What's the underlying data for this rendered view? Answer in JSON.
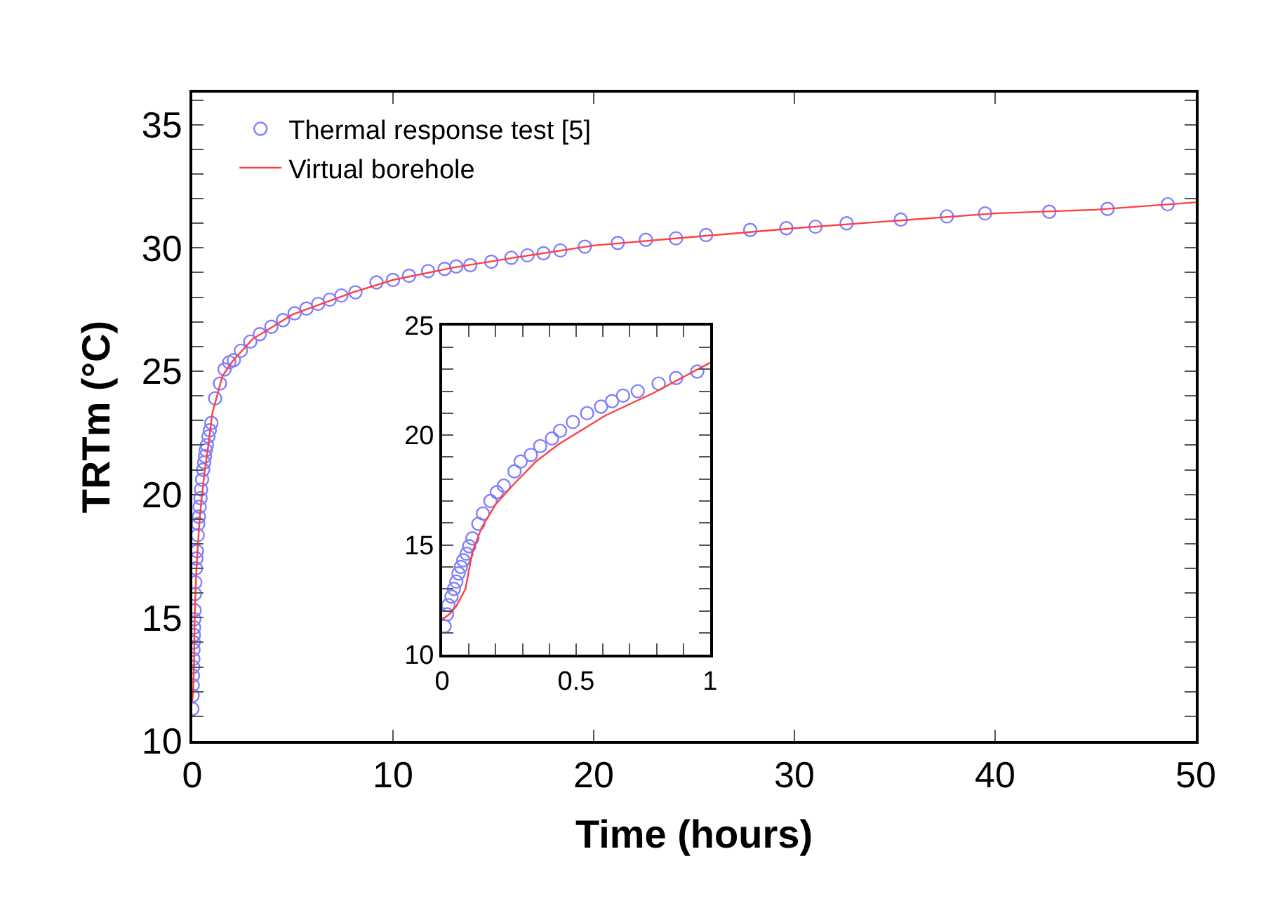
{
  "chart_data": [
    {
      "type": "scatter",
      "xlabel": "Time (hours)",
      "ylabel": "TRTm (°C)",
      "xlim": [
        0,
        50
      ],
      "ylim": [
        10,
        36.3
      ],
      "xticks": [
        0,
        10,
        20,
        30,
        40,
        50
      ],
      "yticks": [
        10,
        {
          "value": 11,
          "label": null
        },
        {
          "value": 12,
          "label": null
        },
        {
          "value": 13,
          "label": null
        },
        {
          "value": 14,
          "label": null
        },
        15,
        {
          "value": 16,
          "label": null
        },
        {
          "value": 17,
          "label": null
        },
        {
          "value": 18,
          "label": null
        },
        {
          "value": 19,
          "label": null
        },
        20,
        {
          "value": 21,
          "label": null
        },
        {
          "value": 22,
          "label": null
        },
        {
          "value": 23,
          "label": null
        },
        {
          "value": 24,
          "label": null
        },
        25,
        {
          "value": 26,
          "label": null
        },
        {
          "value": 27,
          "label": null
        },
        {
          "value": 28,
          "label": null
        },
        {
          "value": 29,
          "label": null
        },
        30,
        {
          "value": 31,
          "label": null
        },
        {
          "value": 32,
          "label": null
        },
        {
          "value": 33,
          "label": null
        },
        {
          "value": 34,
          "label": null
        },
        35,
        {
          "value": 36,
          "label": null
        }
      ],
      "legend": "top left",
      "series": [
        {
          "name": "Thermal response test [5]",
          "marker": "circle",
          "color": "#8080ff",
          "x": [
            0.009,
            0.018,
            0.023,
            0.035,
            0.044,
            0.053,
            0.061,
            0.07,
            0.079,
            0.091,
            0.101,
            0.113,
            0.135,
            0.152,
            0.18,
            0.204,
            0.23,
            0.27,
            0.293,
            0.331,
            0.366,
            0.41,
            0.44,
            0.488,
            0.541,
            0.593,
            0.634,
            0.675,
            0.73,
            0.808,
            0.873,
            0.952,
            1.14,
            1.38,
            1.61,
            1.84,
            2.07,
            2.42,
            2.89,
            3.36,
            3.94,
            4.52,
            5.1,
            5.69,
            6.27,
            6.85,
            7.43,
            8.13,
            9.18,
            10.0,
            10.8,
            11.75,
            12.57,
            13.15,
            13.85,
            14.9,
            15.9,
            16.7,
            17.5,
            18.34,
            19.56,
            21.2,
            22.6,
            24.1,
            25.6,
            27.8,
            29.6,
            31.05,
            32.6,
            35.3,
            37.6,
            39.5,
            42.7,
            45.6,
            48.6
          ],
          "values": [
            11.3,
            11.84,
            12.26,
            12.65,
            13.0,
            13.33,
            13.7,
            14.0,
            14.3,
            14.6,
            14.94,
            15.3,
            15.96,
            16.43,
            17.0,
            17.4,
            17.7,
            18.35,
            18.8,
            19.1,
            19.5,
            19.85,
            20.2,
            20.6,
            21.0,
            21.3,
            21.55,
            21.8,
            22.0,
            22.35,
            22.6,
            22.9,
            23.9,
            24.5,
            25.07,
            25.36,
            25.45,
            25.83,
            26.2,
            26.5,
            26.8,
            27.07,
            27.35,
            27.54,
            27.73,
            27.9,
            28.07,
            28.2,
            28.6,
            28.7,
            28.87,
            29.06,
            29.15,
            29.25,
            29.3,
            29.44,
            29.6,
            29.7,
            29.78,
            29.9,
            30.05,
            30.2,
            30.33,
            30.39,
            30.52,
            30.73,
            30.8,
            30.86,
            31.0,
            31.15,
            31.28,
            31.4,
            31.47,
            31.58,
            31.77
          ]
        },
        {
          "name": "Virtual borehole",
          "type": "line",
          "marker": "none",
          "line_style": "solid",
          "color": "#ff4040",
          "x": [
            0,
            0.026,
            0.052,
            0.087,
            0.113,
            0.148,
            0.2,
            0.27,
            0.35,
            0.436,
            0.61,
            0.785,
            1.0,
            1.5,
            2,
            3,
            5,
            8,
            10,
            13,
            16,
            20,
            25,
            30,
            35,
            40,
            45,
            50
          ],
          "values": [
            11.6,
            11.84,
            12.2,
            13.0,
            14.7,
            15.8,
            16.86,
            17.8,
            18.8,
            19.6,
            20.9,
            21.9,
            23.3,
            24.8,
            25.4,
            26.3,
            27.3,
            28.2,
            28.7,
            29.2,
            29.6,
            30.1,
            30.45,
            30.8,
            31.1,
            31.4,
            31.55,
            31.85
          ]
        }
      ]
    },
    {
      "type": "scatter",
      "xlim": [
        0,
        1
      ],
      "ylim": [
        10,
        25
      ],
      "xticks": [
        0,
        {
          "value": 0.1,
          "label": null
        },
        {
          "value": 0.2,
          "label": null
        },
        {
          "value": 0.3,
          "label": null
        },
        {
          "value": 0.4,
          "label": null
        },
        0.5,
        {
          "value": 0.6,
          "label": null
        },
        {
          "value": 0.7,
          "label": null
        },
        {
          "value": 0.8,
          "label": null
        },
        {
          "value": 0.9,
          "label": null
        },
        1
      ],
      "yticks": [
        10,
        {
          "value": 11,
          "label": null
        },
        {
          "value": 12,
          "label": null
        },
        {
          "value": 13,
          "label": null
        },
        {
          "value": 14,
          "label": null
        },
        15,
        {
          "value": 16,
          "label": null
        },
        {
          "value": 17,
          "label": null
        },
        {
          "value": 18,
          "label": null
        },
        {
          "value": 19,
          "label": null
        },
        20,
        {
          "value": 21,
          "label": null
        },
        {
          "value": 22,
          "label": null
        },
        {
          "value": 23,
          "label": null
        },
        {
          "value": 24,
          "label": null
        },
        25
      ],
      "series": [
        {
          "marker": "circle",
          "color": "#8080ff",
          "x": [
            0.009,
            0.018,
            0.023,
            0.035,
            0.044,
            0.053,
            0.061,
            0.07,
            0.079,
            0.091,
            0.101,
            0.113,
            0.135,
            0.152,
            0.18,
            0.204,
            0.23,
            0.27,
            0.293,
            0.331,
            0.366,
            0.41,
            0.44,
            0.488,
            0.541,
            0.593,
            0.634,
            0.675,
            0.73,
            0.808,
            0.873,
            0.952
          ],
          "values": [
            11.3,
            11.84,
            12.26,
            12.65,
            13.0,
            13.33,
            13.7,
            14.0,
            14.3,
            14.6,
            14.94,
            15.3,
            15.96,
            16.43,
            17.0,
            17.4,
            17.7,
            18.35,
            18.8,
            19.1,
            19.5,
            19.85,
            20.2,
            20.6,
            21.0,
            21.3,
            21.55,
            21.8,
            22.0,
            22.35,
            22.6,
            22.9
          ]
        },
        {
          "type": "line",
          "marker": "none",
          "line_style": "solid",
          "color": "#ff4040",
          "x": [
            0,
            0.026,
            0.052,
            0.087,
            0.113,
            0.148,
            0.2,
            0.27,
            0.35,
            0.436,
            0.61,
            0.785,
            1.0
          ],
          "values": [
            11.6,
            11.84,
            12.2,
            13.0,
            14.7,
            15.8,
            16.86,
            17.8,
            18.8,
            19.6,
            20.9,
            21.9,
            23.3
          ]
        }
      ]
    }
  ]
}
